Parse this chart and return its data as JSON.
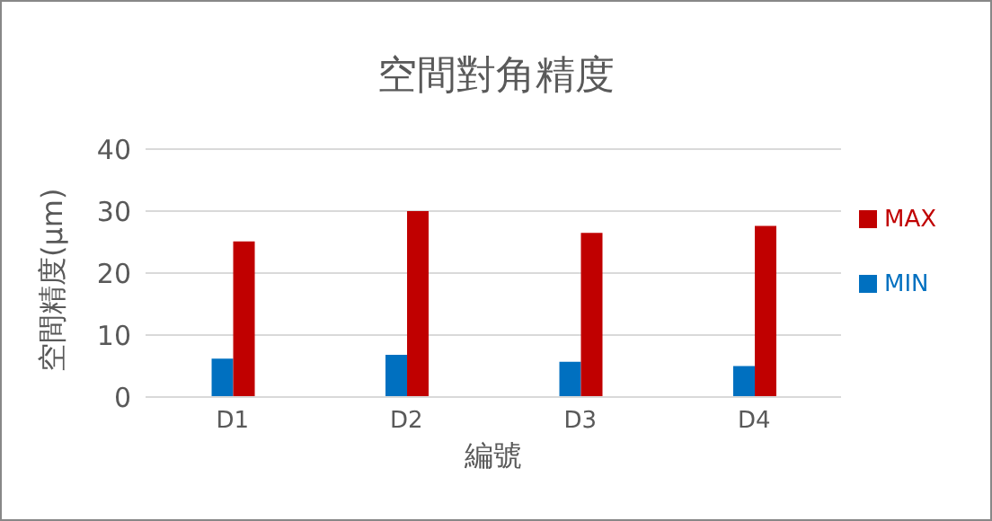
{
  "chart_data": {
    "type": "bar",
    "title": "空間對角精度",
    "xlabel": "編號",
    "ylabel": "空間精度(μm)",
    "categories": [
      "D1",
      "D2",
      "D3",
      "D4"
    ],
    "series": [
      {
        "name": "MIN",
        "color": "#0070c0",
        "values": [
          6.2,
          6.8,
          5.7,
          5.0
        ]
      },
      {
        "name": "MAX",
        "color": "#c00000",
        "values": [
          25.1,
          30.0,
          26.5,
          27.6
        ]
      }
    ],
    "ylim": [
      0,
      40
    ],
    "yticks": [
      0,
      10,
      20,
      30,
      40
    ],
    "grid": "y",
    "legend": "right"
  }
}
